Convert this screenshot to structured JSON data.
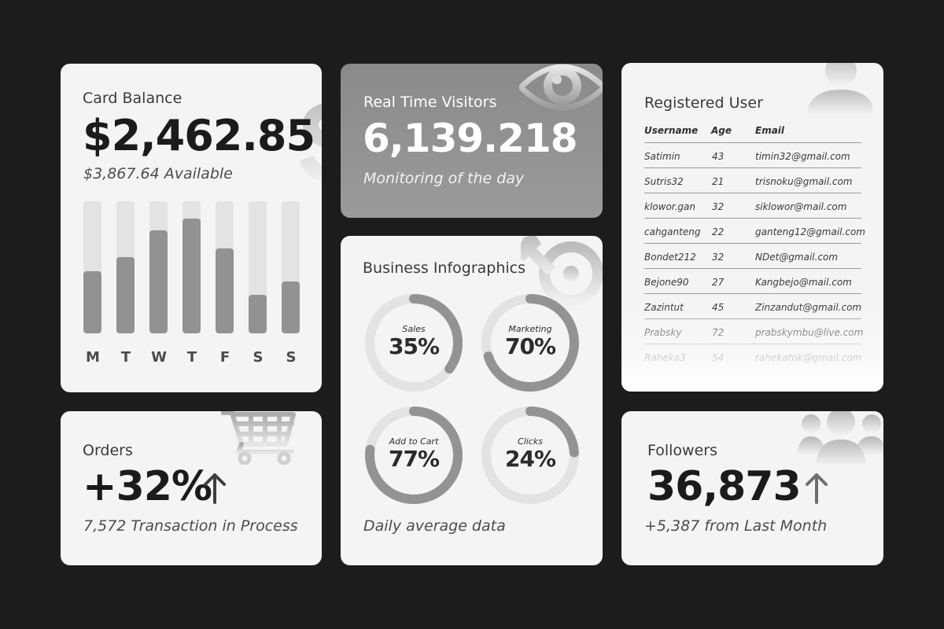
{
  "card_balance": {
    "title": "Card Balance",
    "amount": "$2,462.85",
    "available": "$3,867.64 Available",
    "bars": [
      {
        "day": "M",
        "level": 0.47
      },
      {
        "day": "T",
        "level": 0.58
      },
      {
        "day": "W",
        "level": 0.78
      },
      {
        "day": "T",
        "level": 0.87
      },
      {
        "day": "F",
        "level": 0.64
      },
      {
        "day": "S",
        "level": 0.29
      },
      {
        "day": "S",
        "level": 0.39
      }
    ]
  },
  "visitors": {
    "title": "Real Time Visitors",
    "count": "6,139.218",
    "subtitle": "Monitoring of the day"
  },
  "infographics": {
    "title": "Business Infographics",
    "footer": "Daily average data",
    "donuts": [
      {
        "label": "Sales",
        "value": "35%",
        "percent": 35
      },
      {
        "label": "Marketing",
        "value": "70%",
        "percent": 70
      },
      {
        "label": "Add to Cart",
        "value": "77%",
        "percent": 77
      },
      {
        "label": "Clicks",
        "value": "24%",
        "percent": 24
      }
    ]
  },
  "users": {
    "title": "Registered User",
    "columns": {
      "username": "Username",
      "age": "Age",
      "email": "Email"
    },
    "rows": [
      {
        "username": "Satimin",
        "age": "43",
        "email": "timin32@gmail.com"
      },
      {
        "username": "Sutris32",
        "age": "21",
        "email": "trisnoku@gmail.com"
      },
      {
        "username": "klowor.gan",
        "age": "32",
        "email": "siklowor@mail.com"
      },
      {
        "username": "cahganteng",
        "age": "22",
        "email": "ganteng12@gmail.com"
      },
      {
        "username": "Bondet212",
        "age": "32",
        "email": "NDet@gmail.com"
      },
      {
        "username": "Bejone90",
        "age": "27",
        "email": "Kangbejo@mail.com"
      },
      {
        "username": "Zazintut",
        "age": "45",
        "email": "Zinzandut@gmail.com"
      },
      {
        "username": "Prabsky",
        "age": "72",
        "email": "prabskymbu@live.com"
      },
      {
        "username": "Raheka3",
        "age": "54",
        "email": "rahekatok@gmail.com"
      }
    ]
  },
  "orders": {
    "title": "Orders",
    "value": "+32%",
    "subtitle": "7,572 Transaction in Process"
  },
  "followers": {
    "title": "Followers",
    "value": "36,873",
    "subtitle": "+5,387 from Last Month"
  },
  "colors": {
    "background": "#1c1c1c",
    "card": "#f4f4f4",
    "accent_gray": "#929292",
    "track_gray": "#e3e3e3"
  },
  "icons": [
    "dollar-icon",
    "eye-icon",
    "wrench-icon",
    "user-icon",
    "cart-icon",
    "users-group-icon",
    "arrow-up-icon"
  ]
}
